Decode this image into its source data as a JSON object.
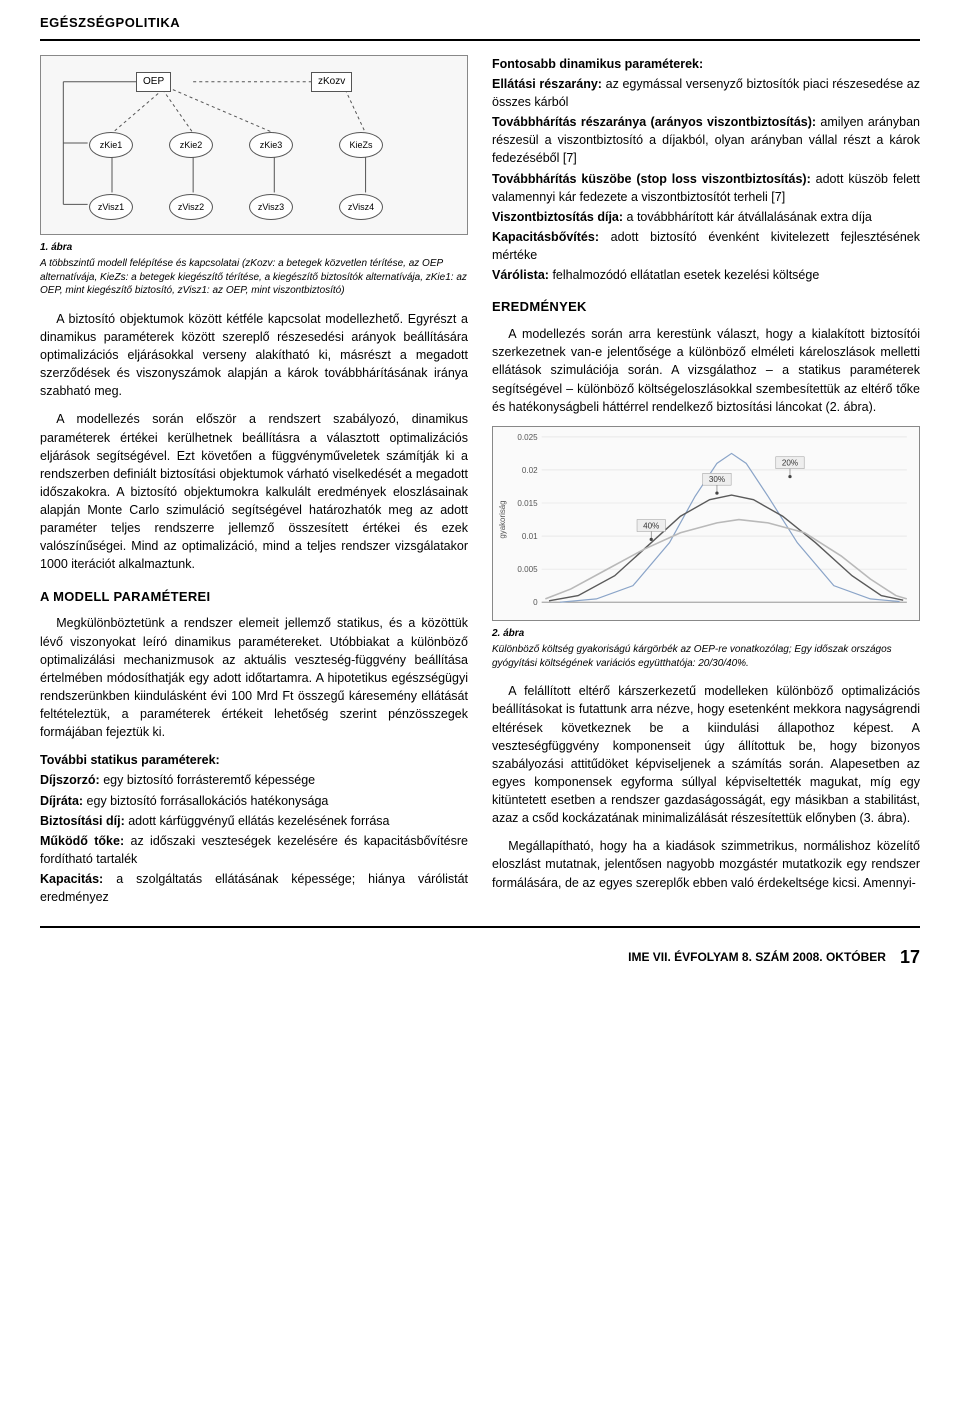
{
  "header": "EGÉSZSÉGPOLITIKA",
  "left": {
    "fig1": {
      "title": "1. ábra",
      "caption": "A többszintű modell felépítése és kapcsolatai (zKozv: a betegek közvetlen térítése, az OEP alternatívája, KieZs: a betegek kiegészítő térítése, a kiegészítő biztosítók alternatívája, zKie1: az OEP, mint kiegészítő biztosító, zVisz1: az OEP, mint viszontbiztosító)",
      "nodes": {
        "oep": "OEP",
        "zkozv": "zKozv",
        "zkie1": "zKie1",
        "zkie2": "zKie2",
        "zkie3": "zKie3",
        "kiezs": "KieZs",
        "zvisz1": "zVisz1",
        "zvisz2": "zVisz2",
        "zvisz3": "zVisz3",
        "zvisz4": "zVisz4"
      }
    },
    "p1": "A biztosító objektumok között kétféle kapcsolat modellezhető. Egyrészt a dinamikus paraméterek között szereplő részesedési arányok beállítására optimalizációs eljárásokkal verseny alakítható ki, másrészt a megadott szerződések és viszonyszámok alapján a károk továbbhárításának iránya szabható meg.",
    "p2": "A modellezés során először a rendszert szabályozó, dinamikus paraméterek értékei kerülhetnek beállításra a választott optimalizációs eljárások segítségével. Ezt követően a függvényműveletek számítják ki a rendszerben definiált biztosítási objektumok várható viselkedését a megadott időszakokra. A biztosító objektumokra kalkulált eredmények eloszlásainak alapján Monte Carlo szimuláció segítségével határozhatók meg az adott paraméter teljes rendszerre jellemző összesített értékei és ezek valószínűségei. Mind az optimalizáció, mind a teljes rendszer vizsgálatakor 1000 iterációt alkalmaztunk.",
    "sec1": "A MODELL PARAMÉTEREI",
    "p3": "Megkülönböztetünk a rendszer elemeit jellemző statikus, és a közöttük lévő viszonyokat leíró dinamikus paramétereket. Utóbbiakat a különböző optimalizálási mechanizmusok az aktuális veszteség-függvény beállítása értelmében módosíthatják egy adott időtartamra. A hipotetikus egészségügyi rendszerünkben kiindulásként évi 100 Mrd Ft összegű káresemény ellátását feltételeztük, a paraméterek értékeit lehetőség szerint pénzösszegek formájában fejeztük ki.",
    "static_heading": "További statikus paraméterek:",
    "defs": [
      {
        "term": "Díjszorzó:",
        "text": " egy biztosító forrásteremtő képessége"
      },
      {
        "term": "Díjráta:",
        "text": " egy biztosító forrásallokációs hatékonysága"
      },
      {
        "term": "Biztosítási díj:",
        "text": " adott kárfüggvényű ellátás kezelésének forrása"
      },
      {
        "term": "Működő tőke:",
        "text": " az időszaki veszteségek kezelésére és kapacitásbővítésre fordítható tartalék"
      },
      {
        "term": "Kapacitás:",
        "text": " a szolgáltatás ellátásának képessége; hiánya várólistát eredményez"
      }
    ]
  },
  "right": {
    "dyn_heading": "Fontosabb dinamikus paraméterek:",
    "dyn": [
      {
        "term": "Ellátási részarány:",
        "text": " az egymással versenyző biztosítók piaci részesedése az összes kárból"
      },
      {
        "term": "Továbbhárítás részaránya (arányos viszontbiztosítás):",
        "text": " amilyen arányban részesül a viszontbiztosító a díjakból, olyan arányban vállal részt a károk fedezéséből [7]"
      },
      {
        "term": "Továbbhárítás küszöbe (stop loss viszontbiztosítás):",
        "text": " adott küszöb felett valamennyi kár fedezete a viszontbiztosítót terheli [7]"
      },
      {
        "term": "Viszontbiztosítás díja:",
        "text": " a továbbhárított kár átvállalásának extra díja"
      },
      {
        "term": "Kapacitásbővítés:",
        "text": " adott biztosító évenként kivitelezett fejlesztésének mértéke"
      },
      {
        "term": "Várólista:",
        "text": " felhalmozódó ellátatlan esetek kezelési költsége"
      }
    ],
    "sec2": "EREDMÉNYEK",
    "p4": "A modellezés során arra kerestünk választ, hogy a kialakított biztosítói szerkezetnek van-e jelentősége a különböző elméleti káreloszlások melletti ellátások szimulációja során. A vizsgálathoz – a statikus paraméterek segítségével – különböző költségeloszlásokkal szembesítettük az eltérő tőke és hatékonyságbeli háttérrel rendelkező biztosítási láncokat (2. ábra).",
    "fig2": {
      "title": "2. ábra",
      "caption": "Különböző költség gyakoriságú kárgörbék az OEP-re vonatkozólag; Egy időszak országos gyógyítási költségének variációs együtthatója: 20/30/40%.",
      "type": "line",
      "background_color": "#fafafa",
      "grid_color": "#dddddd",
      "xlabel": "",
      "ylabel": "gyakoriság",
      "label_fontsize": 8,
      "ylim": [
        0,
        0.025
      ],
      "yticks": [
        0,
        0.005,
        0.01,
        0.015,
        0.02,
        0.025
      ],
      "xlim": [
        0,
        100
      ],
      "series": [
        {
          "name": "20%",
          "color": "#8aa4c8",
          "width": 1.2,
          "points": [
            [
              5,
              0.0
            ],
            [
              15,
              0.0005
            ],
            [
              25,
              0.0025
            ],
            [
              35,
              0.009
            ],
            [
              42,
              0.016
            ],
            [
              48,
              0.021
            ],
            [
              52,
              0.0225
            ],
            [
              56,
              0.021
            ],
            [
              62,
              0.016
            ],
            [
              70,
              0.009
            ],
            [
              80,
              0.0025
            ],
            [
              90,
              0.0005
            ],
            [
              98,
              0.0001
            ]
          ]
        },
        {
          "name": "30%",
          "color": "#5a5a5a",
          "width": 1.4,
          "points": [
            [
              2,
              0.0002
            ],
            [
              10,
              0.001
            ],
            [
              20,
              0.004
            ],
            [
              30,
              0.009
            ],
            [
              38,
              0.013
            ],
            [
              46,
              0.0155
            ],
            [
              52,
              0.0162
            ],
            [
              58,
              0.0155
            ],
            [
              66,
              0.013
            ],
            [
              75,
              0.009
            ],
            [
              85,
              0.004
            ],
            [
              93,
              0.001
            ],
            [
              99,
              0.0003
            ]
          ]
        },
        {
          "name": "40%",
          "color": "#b9b9b9",
          "width": 1.6,
          "points": [
            [
              1,
              0.0005
            ],
            [
              8,
              0.002
            ],
            [
              18,
              0.005
            ],
            [
              28,
              0.008
            ],
            [
              38,
              0.0105
            ],
            [
              48,
              0.012
            ],
            [
              54,
              0.0125
            ],
            [
              62,
              0.012
            ],
            [
              72,
              0.0105
            ],
            [
              82,
              0.007
            ],
            [
              90,
              0.0035
            ],
            [
              97,
              0.001
            ],
            [
              100,
              0.0005
            ]
          ]
        }
      ],
      "markers": [
        {
          "label": "40%",
          "x": 30,
          "y": 0.0095,
          "box": "#eee"
        },
        {
          "label": "30%",
          "x": 48,
          "y": 0.0165,
          "box": "#eee"
        },
        {
          "label": "20%",
          "x": 68,
          "y": 0.019,
          "box": "#eee"
        }
      ]
    },
    "p5": "A felállított eltérő kárszerkezetű modelleken különböző optimalizációs beállításokat is futattunk arra nézve, hogy esetenként mekkora nagyságrendi eltérések következnek be a kiindulási állapothoz képest. A veszteségfüggvény komponenseit úgy állítottuk be, hogy bizonyos szabályozási attitűdöket képviseljenek a számítás során. Alapesetben az egyes komponensek egyforma súllyal képviseltették magukat, míg egy kitüntetett esetben a rendszer gazdaságosságát, egy másikban a stabilitást, azaz a csőd kockázatának minimalizálását részesítettük előnyben (3. ábra).",
    "p6": "Megállapítható, hogy ha a kiadások szimmetrikus, normálishoz közelítő eloszlást mutatnak, jelentősen nagyobb mozgástér mutatkozik egy rendszer formálására, de az egyes szereplők ebben való érdekeltsége kicsi. Amennyi-"
  },
  "footer": {
    "issue": "IME VII. ÉVFOLYAM 8. SZÁM 2008. OKTÓBER",
    "page": "17"
  }
}
